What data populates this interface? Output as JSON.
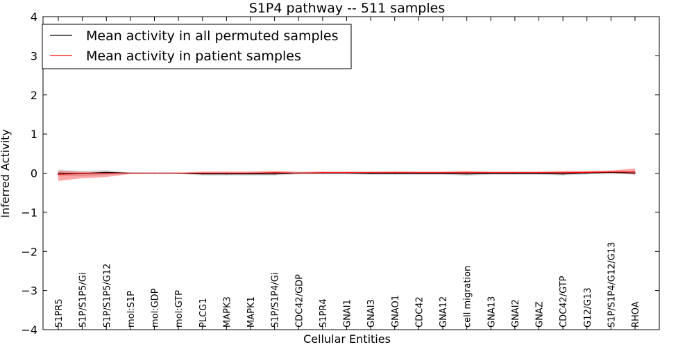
{
  "chart_data": {
    "type": "line",
    "title": "S1P4 pathway -- 511 samples",
    "xlabel": "Cellular Entities",
    "ylabel": "Inferred Activity",
    "ylim": [
      -4,
      4
    ],
    "yticks": [
      4,
      3,
      2,
      1,
      0,
      -1,
      -2,
      -3,
      -4
    ],
    "ytick_labels": [
      "4",
      "3",
      "2",
      "1",
      "0",
      "−1",
      "−2",
      "−3",
      "−4"
    ],
    "grid": false,
    "legend_position": "top-left",
    "categories": [
      "S1PR5",
      "S1P/S1P5/Gi",
      "S1P/S1P5/G12",
      "mol:S1P",
      "mol:GDP",
      "mol:GTP",
      "PLCG1",
      "MAPK3",
      "MAPK1",
      "S1P/S1P4/Gi",
      "CDC42/GDP",
      "S1PR4",
      "GNAI1",
      "GNAI3",
      "GNAO1",
      "CDC42",
      "GNA12",
      "cell migration",
      "GNA13",
      "GNAI2",
      "GNAZ",
      "CDC42/GTP",
      "G12/G13",
      "S1P/S1P4/G12/G13",
      "RHOA"
    ],
    "series": [
      {
        "name": "Mean activity in all permuted samples",
        "color": "#000000",
        "band_color": "#999999",
        "values": [
          0.0,
          -0.01,
          0.02,
          0.0,
          0.0,
          0.0,
          -0.02,
          -0.02,
          -0.02,
          -0.02,
          0.0,
          0.0,
          0.0,
          -0.01,
          -0.01,
          -0.01,
          -0.01,
          -0.02,
          -0.01,
          -0.01,
          -0.01,
          -0.02,
          0.0,
          0.02,
          0.0
        ],
        "band_low": [
          -0.08,
          -0.08,
          -0.05,
          -0.01,
          -0.01,
          -0.02,
          -0.06,
          -0.06,
          -0.06,
          -0.06,
          -0.03,
          -0.03,
          -0.03,
          -0.04,
          -0.04,
          -0.04,
          -0.04,
          -0.07,
          -0.04,
          -0.04,
          -0.04,
          -0.06,
          -0.03,
          -0.01,
          -0.04
        ],
        "band_high": [
          0.09,
          0.06,
          0.08,
          0.01,
          0.01,
          0.01,
          0.02,
          0.02,
          0.02,
          0.02,
          0.03,
          0.03,
          0.03,
          0.03,
          0.03,
          0.03,
          0.03,
          0.03,
          0.03,
          0.03,
          0.03,
          0.03,
          0.03,
          0.05,
          0.04
        ]
      },
      {
        "name": "Mean activity in patient samples",
        "color": "#ff0000",
        "band_color": "#ff0000",
        "values": [
          -0.03,
          -0.01,
          0.0,
          0.0,
          0.0,
          0.0,
          0.0,
          0.0,
          0.0,
          0.01,
          0.0,
          0.01,
          0.01,
          0.01,
          0.01,
          0.01,
          0.01,
          0.01,
          0.01,
          0.01,
          0.01,
          0.01,
          0.02,
          0.03,
          0.03
        ],
        "band_low": [
          -0.2,
          -0.13,
          -0.1,
          -0.02,
          -0.01,
          -0.01,
          -0.02,
          -0.02,
          -0.02,
          -0.02,
          -0.01,
          -0.01,
          -0.01,
          -0.01,
          -0.01,
          -0.01,
          -0.01,
          -0.01,
          -0.01,
          -0.01,
          -0.01,
          -0.01,
          0.0,
          0.01,
          -0.03
        ],
        "band_high": [
          0.06,
          0.03,
          0.03,
          0.01,
          0.01,
          0.01,
          0.04,
          0.04,
          0.04,
          0.06,
          0.03,
          0.04,
          0.04,
          0.04,
          0.05,
          0.04,
          0.04,
          0.06,
          0.04,
          0.04,
          0.04,
          0.06,
          0.06,
          0.07,
          0.12
        ]
      }
    ]
  }
}
